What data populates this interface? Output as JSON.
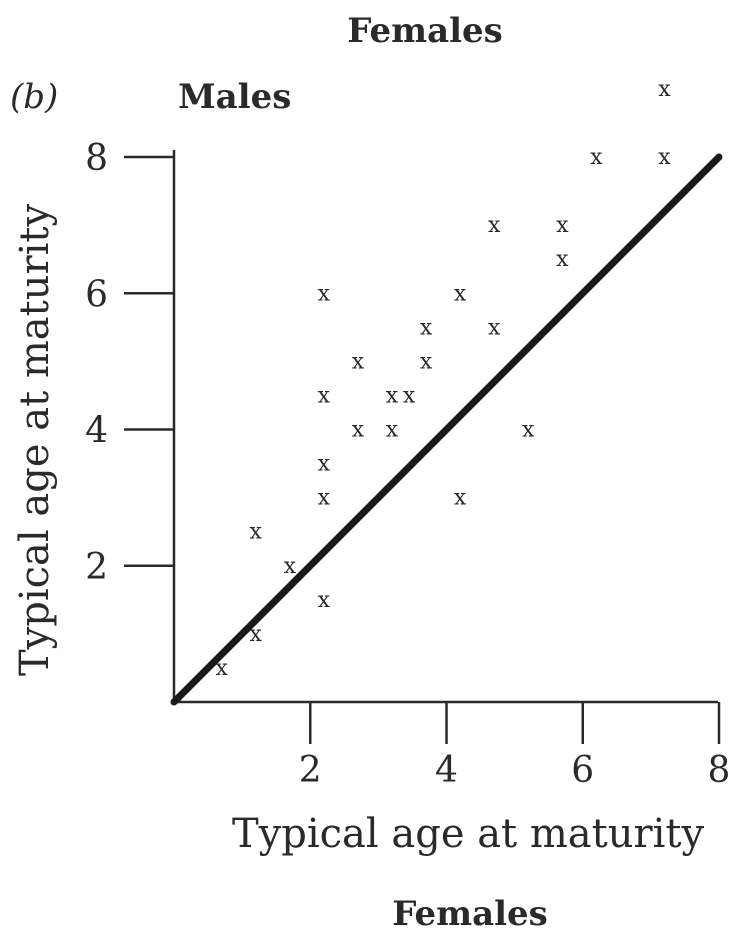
{
  "chart_data": {
    "type": "scatter",
    "panel_label": "(b)",
    "top_heading": "Females",
    "series_heading": "Males",
    "ylabel": "Typical age at maturity",
    "xlabel": "Typical age at maturity",
    "xlabel_sub": "Females",
    "marker": "x",
    "xlim": [
      0,
      8
    ],
    "ylim": [
      0,
      8
    ],
    "x_ticks": [
      2,
      4,
      6,
      8
    ],
    "x_tick_labels": [
      "2",
      "4",
      "6",
      "8"
    ],
    "y_ticks": [
      2,
      4,
      6,
      8
    ],
    "y_tick_labels": [
      "2",
      "4",
      "6",
      "8"
    ],
    "reference_line": {
      "from": [
        0,
        0
      ],
      "to": [
        8,
        8
      ]
    },
    "points": [
      {
        "x": 0.7,
        "y": 0.5
      },
      {
        "x": 1.2,
        "y": 1.0
      },
      {
        "x": 1.2,
        "y": 2.5
      },
      {
        "x": 1.7,
        "y": 2.0
      },
      {
        "x": 2.2,
        "y": 1.5
      },
      {
        "x": 2.2,
        "y": 3.0
      },
      {
        "x": 2.2,
        "y": 3.5
      },
      {
        "x": 2.2,
        "y": 4.5
      },
      {
        "x": 2.2,
        "y": 6.0
      },
      {
        "x": 2.7,
        "y": 4.0
      },
      {
        "x": 2.7,
        "y": 5.0
      },
      {
        "x": 3.2,
        "y": 4.0
      },
      {
        "x": 3.2,
        "y": 4.5
      },
      {
        "x": 3.45,
        "y": 4.5
      },
      {
        "x": 3.7,
        "y": 5.0
      },
      {
        "x": 3.7,
        "y": 5.5
      },
      {
        "x": 4.2,
        "y": 3.0
      },
      {
        "x": 4.2,
        "y": 6.0
      },
      {
        "x": 4.7,
        "y": 5.5
      },
      {
        "x": 4.7,
        "y": 7.0
      },
      {
        "x": 5.2,
        "y": 4.0
      },
      {
        "x": 5.7,
        "y": 6.5
      },
      {
        "x": 5.7,
        "y": 7.0
      },
      {
        "x": 6.2,
        "y": 8.0
      },
      {
        "x": 7.2,
        "y": 8.0
      },
      {
        "x": 7.2,
        "y": 9.0
      }
    ],
    "grid": false,
    "legend": "none"
  }
}
